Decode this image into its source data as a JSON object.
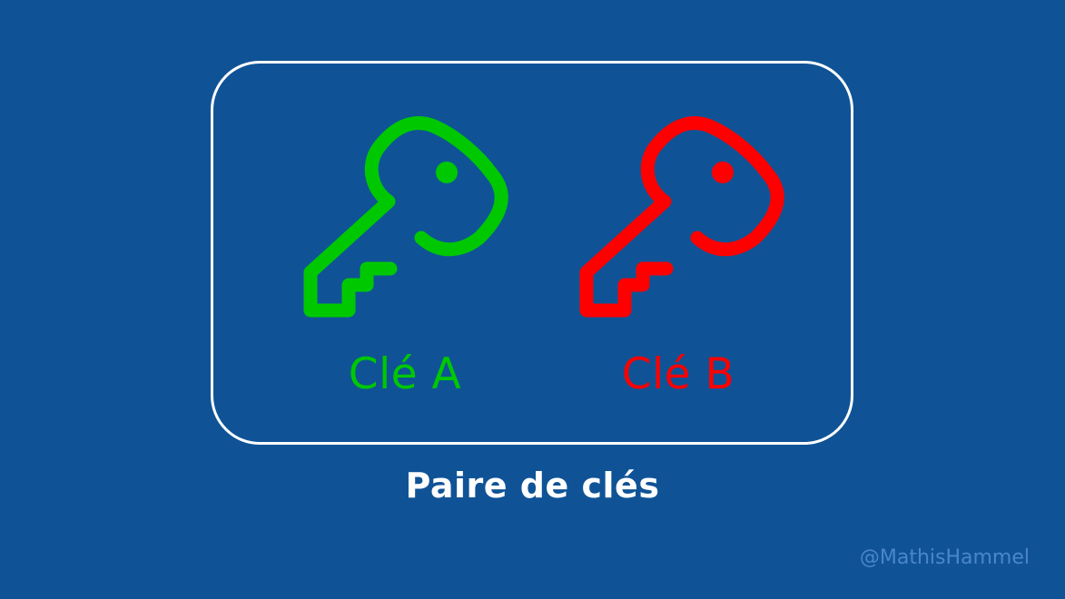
{
  "colors": {
    "background": "#0f5396",
    "frame": "#ffffff",
    "key_a": "#00c800",
    "key_b": "#ff0000",
    "caption": "#ffffff",
    "watermark": "#4a86c9"
  },
  "keys": [
    {
      "icon": "key-icon",
      "label": "Clé A",
      "color": "#00c800"
    },
    {
      "icon": "key-icon",
      "label": "Clé B",
      "color": "#ff0000"
    }
  ],
  "caption": "Paire de clés",
  "watermark": "@MathisHammel"
}
